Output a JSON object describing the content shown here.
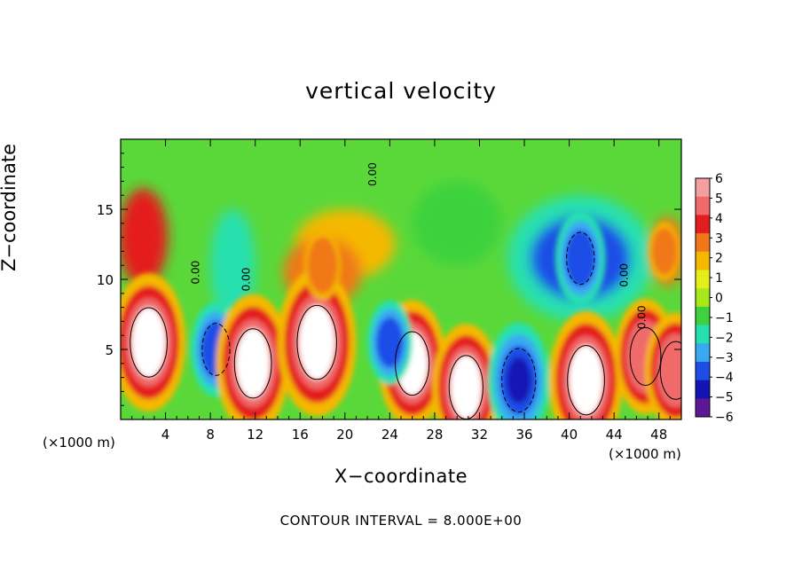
{
  "chart_data": {
    "type": "heatmap",
    "title": "vertical velocity",
    "xlabel": "X−coordinate",
    "ylabel": "Z−coordinate",
    "x_unit_left": "(×1000 m)",
    "x_unit_right": "(×1000 m)",
    "footer": "CONTOUR INTERVAL = 8.000E+00",
    "xlim": [
      0,
      50
    ],
    "ylim": [
      0,
      20
    ],
    "x_ticks": [
      4,
      8,
      12,
      16,
      20,
      24,
      28,
      32,
      36,
      40,
      44,
      48
    ],
    "x_tick_labels": [
      "4",
      "8",
      "12",
      "16",
      "20",
      "24",
      "28",
      "32",
      "36",
      "40",
      "44",
      "48"
    ],
    "y_ticks": [
      5,
      10,
      15
    ],
    "y_tick_labels": [
      "5",
      "10",
      "15"
    ],
    "colorbar": {
      "levels": [
        6,
        5,
        4,
        3,
        2,
        1,
        0,
        -1,
        -2,
        -3,
        -4,
        -5,
        -6
      ],
      "labels": [
        "6",
        "5",
        "4",
        "3",
        "2",
        "1",
        "0",
        "−1",
        "−2",
        "−3",
        "−4",
        "−5",
        "−6"
      ],
      "colors": [
        "#f5a0a0",
        "#f06a6a",
        "#e41e1e",
        "#f07818",
        "#f5b800",
        "#e6ee1a",
        "#a6e81a",
        "#3ed23e",
        "#26e0b0",
        "#3aaaf0",
        "#1e4ee6",
        "#1414b4",
        "#5a1896"
      ]
    },
    "contour_labels": [
      "0.00",
      "0.00",
      "0.00",
      "0.00",
      "0.00"
    ],
    "features": [
      {
        "x": 2.5,
        "z": 5.5,
        "w": 6.0
      },
      {
        "x": 8.5,
        "z": 5.0,
        "w": -4.5
      },
      {
        "x": 11.8,
        "z": 4.0,
        "w": 6.0
      },
      {
        "x": 17.5,
        "z": 5.5,
        "w": 6.5
      },
      {
        "x": 18.0,
        "z": 11.0,
        "w": 3.0
      },
      {
        "x": 26.0,
        "z": 4.0,
        "w": 5.5
      },
      {
        "x": 24.0,
        "z": 5.5,
        "w": -4.0
      },
      {
        "x": 30.8,
        "z": 2.3,
        "w": 5.5
      },
      {
        "x": 35.5,
        "z": 2.8,
        "w": -5.5
      },
      {
        "x": 41.5,
        "z": 2.8,
        "w": 6.0
      },
      {
        "x": 41.0,
        "z": 11.5,
        "w": -4.5
      },
      {
        "x": 46.8,
        "z": 4.5,
        "w": 5.0
      },
      {
        "x": 49.5,
        "z": 3.5,
        "w": 5.0
      },
      {
        "x": 48.5,
        "z": 12.0,
        "w": 2.5
      }
    ]
  }
}
